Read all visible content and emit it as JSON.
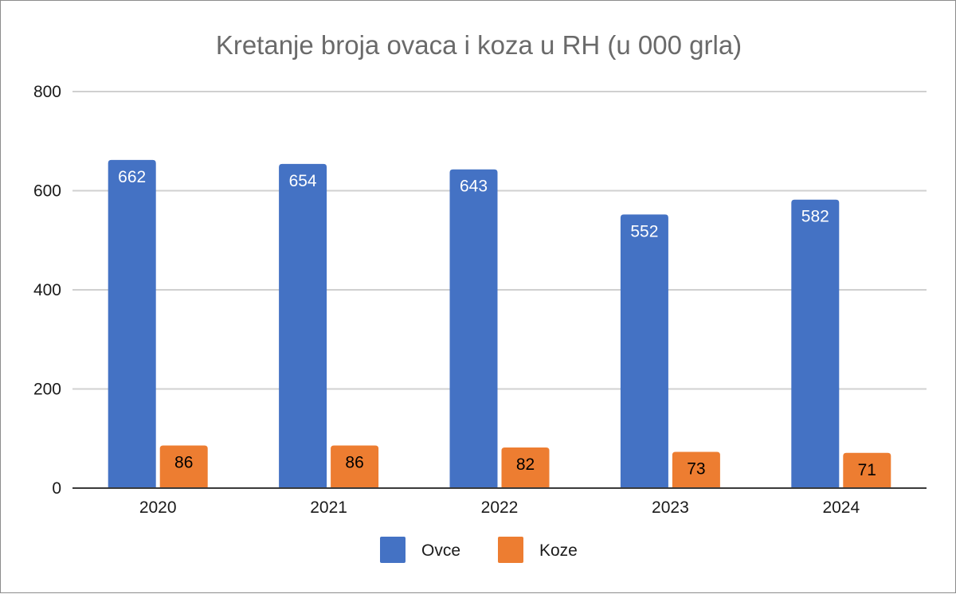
{
  "chart_data": {
    "type": "bar",
    "title": "Kretanje broja ovaca i koza u RH (u 000 grla)",
    "xlabel": "",
    "ylabel": "",
    "categories": [
      "2020",
      "2021",
      "2022",
      "2023",
      "2024"
    ],
    "ylim": [
      0,
      800
    ],
    "yticks": [
      0,
      200,
      400,
      600,
      800
    ],
    "grid": true,
    "legend_position": "bottom",
    "series": [
      {
        "name": "Ovce",
        "color": "#4472C4",
        "label_color": "#ffffff",
        "values": [
          662,
          654,
          643,
          552,
          582
        ],
        "labels": [
          "662",
          "654",
          "643",
          "552",
          "582"
        ]
      },
      {
        "name": "Koze",
        "color": "#ED7D31",
        "label_color": "#000000",
        "values": [
          86,
          86,
          82,
          73,
          71
        ],
        "labels": [
          "86",
          "86",
          "82",
          "73",
          "71"
        ]
      }
    ]
  }
}
